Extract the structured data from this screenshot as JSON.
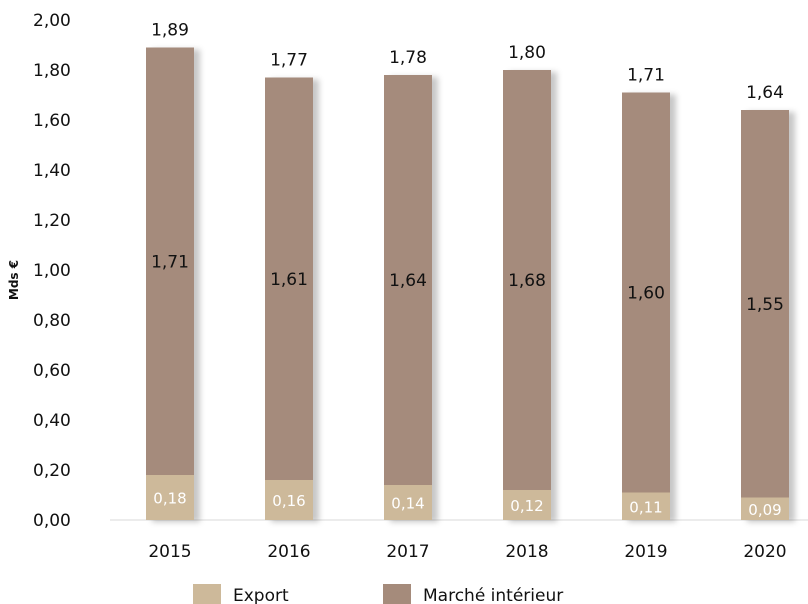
{
  "chart_data": {
    "type": "bar",
    "stacked": true,
    "categories": [
      "2015",
      "2016",
      "2017",
      "2018",
      "2019",
      "2020"
    ],
    "series": [
      {
        "name": "Export",
        "values": [
          0.18,
          0.16,
          0.14,
          0.12,
          0.11,
          0.09
        ],
        "labels": [
          "0,18",
          "0,16",
          "0,14",
          "0,12",
          "0,11",
          "0,09"
        ],
        "color": "#cdb99a"
      },
      {
        "name": "Marché intérieur",
        "values": [
          1.71,
          1.61,
          1.64,
          1.68,
          1.6,
          1.55
        ],
        "labels": [
          "1,71",
          "1,61",
          "1,64",
          "1,68",
          "1,60",
          "1,55"
        ],
        "color": "#a58b7b"
      }
    ],
    "totals": [
      1.89,
      1.77,
      1.78,
      1.8,
      1.71,
      1.64
    ],
    "total_labels": [
      "1,89",
      "1,77",
      "1,78",
      "1,80",
      "1,71",
      "1,64"
    ],
    "ylabel": "Mds €",
    "ylim": [
      0,
      2.0
    ],
    "yticks": [
      "0,00",
      "0,20",
      "0,40",
      "0,60",
      "0,80",
      "1,00",
      "1,20",
      "1,40",
      "1,60",
      "1,80",
      "2,00"
    ],
    "grid": false,
    "legend_position": "bottom"
  }
}
